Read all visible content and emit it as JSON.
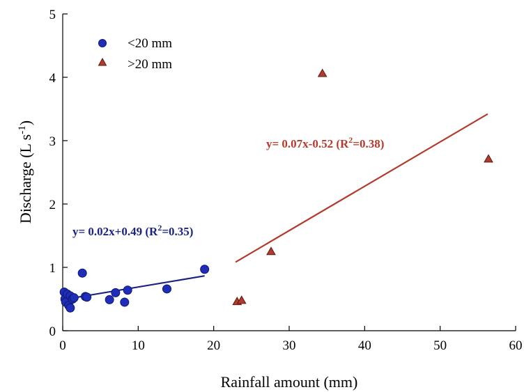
{
  "chart_data": {
    "type": "scatter",
    "xlabel": "Rainfall amount (mm)",
    "ylabel_main": "Discharge (L s",
    "ylabel_sup": "-1",
    "ylabel_close": ")",
    "xlim": [
      0,
      60
    ],
    "ylim": [
      0,
      5
    ],
    "x_ticks": [
      "0",
      "10",
      "20",
      "30",
      "40",
      "50",
      "60"
    ],
    "y_ticks": [
      "0",
      "1",
      "2",
      "3",
      "4",
      "5"
    ],
    "legend_position": "top-left",
    "grid": false,
    "series": [
      {
        "name": "<20 mm",
        "marker": "circle",
        "color": "#1f2db8",
        "points": [
          {
            "x": 0.2,
            "y": 0.61
          },
          {
            "x": 0.3,
            "y": 0.5
          },
          {
            "x": 0.4,
            "y": 0.45
          },
          {
            "x": 0.6,
            "y": 0.58
          },
          {
            "x": 0.8,
            "y": 0.4
          },
          {
            "x": 1.0,
            "y": 0.36
          },
          {
            "x": 1.0,
            "y": 0.55
          },
          {
            "x": 1.3,
            "y": 0.5
          },
          {
            "x": 1.5,
            "y": 0.52
          },
          {
            "x": 2.6,
            "y": 0.91
          },
          {
            "x": 3.0,
            "y": 0.54
          },
          {
            "x": 3.2,
            "y": 0.53
          },
          {
            "x": 6.2,
            "y": 0.49
          },
          {
            "x": 7.0,
            "y": 0.6
          },
          {
            "x": 8.2,
            "y": 0.45
          },
          {
            "x": 8.6,
            "y": 0.64
          },
          {
            "x": 13.8,
            "y": 0.66
          },
          {
            "x": 18.8,
            "y": 0.97
          }
        ]
      },
      {
        "name": ">20 mm",
        "marker": "triangle",
        "color": "#b23a2e",
        "points": [
          {
            "x": 23.1,
            "y": 0.46
          },
          {
            "x": 23.7,
            "y": 0.48
          },
          {
            "x": 27.6,
            "y": 1.25
          },
          {
            "x": 34.4,
            "y": 4.06
          },
          {
            "x": 56.4,
            "y": 2.71
          }
        ]
      }
    ],
    "fits": [
      {
        "series": "<20 mm",
        "slope": 0.02,
        "intercept": 0.49,
        "x_range": [
          0,
          18.8
        ],
        "color": "#1a237e",
        "label_main": "y= 0.02x+0.49 (R",
        "label_sup": "2",
        "label_close": "=0.35)"
      },
      {
        "series": ">20 mm",
        "slope": 0.07,
        "intercept": -0.52,
        "x_range": [
          22.9,
          56.3
        ],
        "color": "#b23a2e",
        "label_main": "y= 0.07x-0.52 (R",
        "label_sup": "2",
        "label_close": "=0.38)"
      }
    ]
  }
}
